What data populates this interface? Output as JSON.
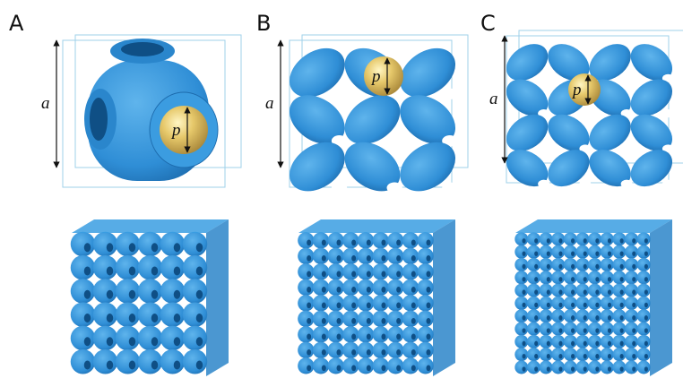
{
  "panels": [
    {
      "label": "A",
      "cell_size_label": "a",
      "pore_size_label": "p"
    },
    {
      "label": "B",
      "cell_size_label": "a",
      "pore_size_label": "p"
    },
    {
      "label": "C",
      "cell_size_label": "a",
      "pore_size_label": "p"
    }
  ]
}
